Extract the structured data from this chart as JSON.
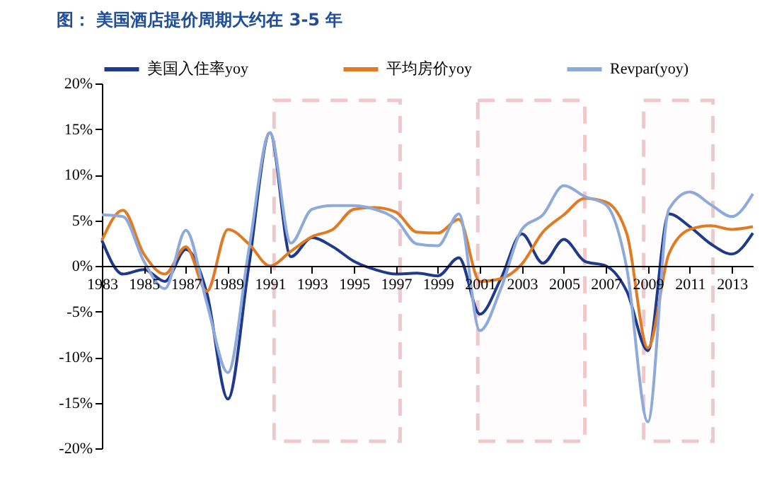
{
  "chart_data": {
    "type": "line",
    "title": "图：   美国酒店提价周期大约在 3-5 年",
    "x": [
      1983,
      1984,
      1985,
      1986,
      1987,
      1988,
      1989,
      1990,
      1991,
      1992,
      1993,
      1994,
      1995,
      1996,
      1997,
      1998,
      1999,
      2000,
      2001,
      2002,
      2003,
      2004,
      2005,
      2006,
      2007,
      2008,
      2009,
      2010,
      2011,
      2012,
      2013,
      2014
    ],
    "series": [
      {
        "name": "美国入住率yoy",
        "color": "#1f3a8c",
        "values": [
          2.8,
          -0.9,
          -0.4,
          -1.7,
          1.8,
          -3,
          -14.6,
          0,
          14.6,
          1,
          3.1,
          2.1,
          0.5,
          -0.4,
          -0.9,
          -0.8,
          -1.1,
          0.9,
          -5.3,
          -1.4,
          3.5,
          0.3,
          2.9,
          0.5,
          0,
          -2.8,
          -9.3,
          5.7,
          4.3,
          2.4,
          1.3,
          3.6
        ]
      },
      {
        "name": "平均房价yoy",
        "color": "#e07b24",
        "values": [
          2.8,
          6.1,
          1.3,
          -0.9,
          2.1,
          -2.8,
          4,
          2.4,
          0,
          1.6,
          3.2,
          4,
          6.2,
          6.4,
          5.9,
          3.7,
          3.6,
          5.1,
          -1.7,
          -1.4,
          0.2,
          3.7,
          5.6,
          7.4,
          7,
          3.5,
          -9,
          1.3,
          4,
          4.4,
          4,
          4.3
        ]
      },
      {
        "name": "Revpar(yoy)",
        "color": "#8eaadb",
        "values": [
          5.6,
          5.4,
          0.5,
          -2.5,
          3.9,
          -4.1,
          -11.7,
          1.8,
          14.6,
          2.5,
          6.2,
          6.6,
          6.6,
          6.2,
          5.1,
          2.4,
          2.2,
          5.7,
          -7.1,
          -2.5,
          4,
          5.6,
          8.8,
          7.6,
          6.7,
          -0.3,
          -17.1,
          6.2,
          8.1,
          6.7,
          5.4,
          7.9
        ]
      }
    ],
    "xlim": [
      1983,
      2014
    ],
    "xticks": [
      1983,
      1985,
      1987,
      1989,
      1991,
      1993,
      1995,
      1997,
      1999,
      2001,
      2003,
      2005,
      2007,
      2009,
      2011,
      2013
    ],
    "ylim": [
      -20,
      20
    ],
    "yticks": [
      {
        "value": -20,
        "label": "-20%"
      },
      {
        "value": -15,
        "label": "-15%"
      },
      {
        "value": -10,
        "label": "-10%"
      },
      {
        "value": -5,
        "label": "-5%"
      },
      {
        "value": 0,
        "label": "0%"
      },
      {
        "value": 5,
        "label": "5%"
      },
      {
        "value": 10,
        "label": "10%"
      },
      {
        "value": 15,
        "label": "15%"
      },
      {
        "value": 20,
        "label": "20%"
      }
    ],
    "bands": [
      {
        "axis": "x",
        "from": 1991.2,
        "to": 1997.2,
        "color": "#f0c8cc"
      },
      {
        "axis": "x",
        "from": 2000.9,
        "to": 2006.0,
        "color": "#f0c8cc"
      },
      {
        "axis": "x",
        "from": 2008.8,
        "to": 2012.1,
        "color": "#f0c8cc"
      }
    ],
    "legend": "top",
    "marker": "none",
    "line_style": "solid"
  }
}
